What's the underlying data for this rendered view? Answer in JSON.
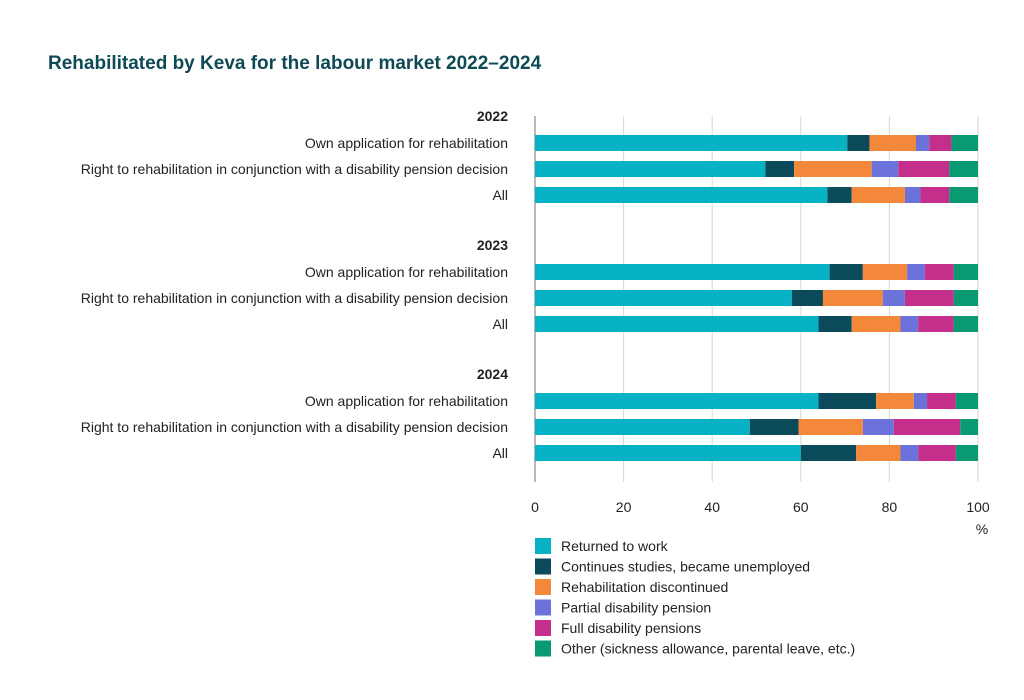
{
  "chart_data": {
    "type": "bar",
    "orientation": "horizontal",
    "stacked": true,
    "title": "Rehabilitated by Keva for the labour market 2022–2024",
    "xlabel": "%",
    "xlim": [
      0,
      100
    ],
    "xticks": [
      "0",
      "20",
      "40",
      "60",
      "80",
      "100"
    ],
    "grid": true,
    "legend_position": "bottom",
    "series_names": [
      "Returned to work",
      "Continues studies, became unemployed",
      "Rehabilitation discontinued",
      "Partial disability pension",
      "Full disability pensions",
      "Other (sickness allowance, parental leave, etc.)"
    ],
    "colors": [
      "#07b2c4",
      "#0b4a5a",
      "#f4883a",
      "#6b73db",
      "#c42f8c",
      "#0a9a72"
    ],
    "groups": [
      {
        "label": "2022",
        "rows": [
          {
            "category": "Own application for rehabilitation",
            "values": [
              70.5,
              5,
              10.5,
              3,
              5,
              6
            ]
          },
          {
            "category": "Right to rehabilitation in conjunction with a disability pension decision",
            "values": [
              52,
              6.5,
              17.5,
              6,
              11.5,
              6.5
            ]
          },
          {
            "category": "All",
            "values": [
              66,
              5.5,
              12,
              3.5,
              6.5,
              6.5
            ]
          }
        ]
      },
      {
        "label": "2023",
        "rows": [
          {
            "category": "Own application for rehabilitation",
            "values": [
              66.5,
              7.5,
              10,
              4,
              6.5,
              5.5
            ]
          },
          {
            "category": "Right to rehabilitation in conjunction with a disability pension decision",
            "values": [
              58,
              7,
              13.5,
              5,
              11,
              5.5
            ]
          },
          {
            "category": "All",
            "values": [
              64,
              7.5,
              11,
              4,
              8,
              5.5
            ]
          }
        ]
      },
      {
        "label": "2024",
        "rows": [
          {
            "category": "Own application for rehabilitation",
            "values": [
              64,
              13,
              8.5,
              3,
              6.5,
              5
            ]
          },
          {
            "category": "Right to rehabilitation in conjunction with a disability pension decision",
            "values": [
              48.5,
              11,
              14.5,
              7,
              15,
              4
            ]
          },
          {
            "category": "All",
            "values": [
              60,
              12.5,
              10,
              4,
              8.5,
              5
            ]
          }
        ]
      }
    ]
  }
}
